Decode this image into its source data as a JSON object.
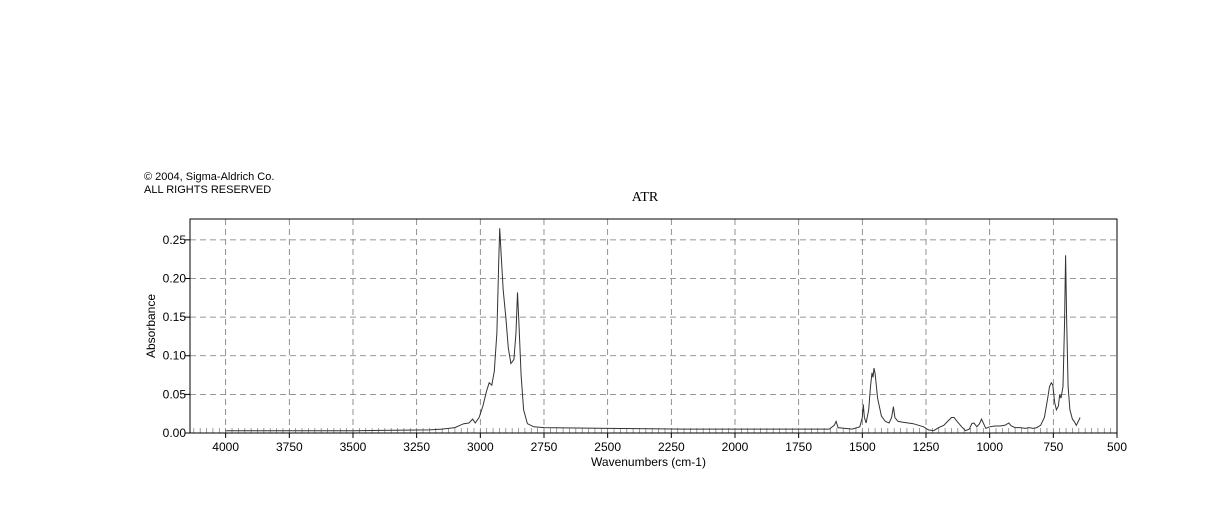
{
  "copyright": {
    "line1": "© 2004, Sigma-Aldrich Co.",
    "line2": "ALL RIGHTS RESERVED"
  },
  "colors": {
    "line": "#333333",
    "grid": "#777777",
    "axis": "#000000"
  },
  "chart_data": {
    "type": "line",
    "title": "ATR",
    "xlabel": "Wavenumbers (cm-1)",
    "ylabel": "Absorbance",
    "xlim": [
      4140,
      500
    ],
    "ylim": [
      0,
      0.277
    ],
    "x_reversed": true,
    "grid": true,
    "x_ticks": [
      4000,
      3750,
      3500,
      3250,
      3000,
      2750,
      2500,
      2250,
      2000,
      1750,
      1500,
      1250,
      1000,
      750,
      500
    ],
    "y_ticks": [
      0.0,
      0.05,
      0.1,
      0.15,
      0.2,
      0.25
    ],
    "x_tick_labels": [
      "4000",
      "3750",
      "3500",
      "3250",
      "3000",
      "2750",
      "2500",
      "2250",
      "2000",
      "1750",
      "1500",
      "1250",
      "1000",
      "750",
      "500"
    ],
    "y_tick_labels": [
      "0.00",
      "0.05",
      "0.10",
      "0.15",
      "0.20",
      "0.25"
    ],
    "series": [
      {
        "points": [
          [
            4000,
            0.003
          ],
          [
            3500,
            0.003
          ],
          [
            3200,
            0.004
          ],
          [
            3150,
            0.005
          ],
          [
            3100,
            0.007
          ],
          [
            3080,
            0.01
          ],
          [
            3065,
            0.012
          ],
          [
            3045,
            0.013
          ],
          [
            3030,
            0.018
          ],
          [
            3020,
            0.013
          ],
          [
            3005,
            0.02
          ],
          [
            2990,
            0.035
          ],
          [
            2975,
            0.055
          ],
          [
            2965,
            0.065
          ],
          [
            2955,
            0.062
          ],
          [
            2945,
            0.08
          ],
          [
            2935,
            0.13
          ],
          [
            2928,
            0.22
          ],
          [
            2924,
            0.265
          ],
          [
            2918,
            0.23
          ],
          [
            2910,
            0.185
          ],
          [
            2900,
            0.15
          ],
          [
            2890,
            0.11
          ],
          [
            2880,
            0.09
          ],
          [
            2868,
            0.095
          ],
          [
            2860,
            0.13
          ],
          [
            2854,
            0.182
          ],
          [
            2848,
            0.14
          ],
          [
            2840,
            0.075
          ],
          [
            2830,
            0.03
          ],
          [
            2815,
            0.012
          ],
          [
            2790,
            0.008
          ],
          [
            2750,
            0.007
          ],
          [
            2500,
            0.006
          ],
          [
            2200,
            0.005
          ],
          [
            1900,
            0.005
          ],
          [
            1700,
            0.005
          ],
          [
            1630,
            0.005
          ],
          [
            1610,
            0.01
          ],
          [
            1603,
            0.015
          ],
          [
            1595,
            0.007
          ],
          [
            1540,
            0.005
          ],
          [
            1510,
            0.008
          ],
          [
            1500,
            0.02
          ],
          [
            1496,
            0.037
          ],
          [
            1492,
            0.02
          ],
          [
            1485,
            0.013
          ],
          [
            1475,
            0.03
          ],
          [
            1468,
            0.06
          ],
          [
            1462,
            0.078
          ],
          [
            1458,
            0.072
          ],
          [
            1454,
            0.084
          ],
          [
            1450,
            0.077
          ],
          [
            1440,
            0.045
          ],
          [
            1425,
            0.022
          ],
          [
            1410,
            0.015
          ],
          [
            1395,
            0.013
          ],
          [
            1385,
            0.02
          ],
          [
            1378,
            0.034
          ],
          [
            1372,
            0.02
          ],
          [
            1360,
            0.015
          ],
          [
            1340,
            0.014
          ],
          [
            1300,
            0.012
          ],
          [
            1260,
            0.008
          ],
          [
            1240,
            0.004
          ],
          [
            1220,
            0.003
          ],
          [
            1200,
            0.007
          ],
          [
            1180,
            0.01
          ],
          [
            1165,
            0.015
          ],
          [
            1150,
            0.02
          ],
          [
            1140,
            0.02
          ],
          [
            1128,
            0.015
          ],
          [
            1110,
            0.008
          ],
          [
            1095,
            0.003
          ],
          [
            1080,
            0.005
          ],
          [
            1070,
            0.012
          ],
          [
            1062,
            0.013
          ],
          [
            1050,
            0.008
          ],
          [
            1040,
            0.012
          ],
          [
            1032,
            0.018
          ],
          [
            1025,
            0.013
          ],
          [
            1015,
            0.006
          ],
          [
            1000,
            0.008
          ],
          [
            980,
            0.009
          ],
          [
            960,
            0.009
          ],
          [
            940,
            0.01
          ],
          [
            925,
            0.013
          ],
          [
            915,
            0.009
          ],
          [
            900,
            0.007
          ],
          [
            880,
            0.007
          ],
          [
            860,
            0.006
          ],
          [
            845,
            0.007
          ],
          [
            830,
            0.006
          ],
          [
            815,
            0.007
          ],
          [
            800,
            0.01
          ],
          [
            785,
            0.02
          ],
          [
            772,
            0.045
          ],
          [
            765,
            0.06
          ],
          [
            758,
            0.065
          ],
          [
            752,
            0.062
          ],
          [
            745,
            0.04
          ],
          [
            738,
            0.03
          ],
          [
            730,
            0.035
          ],
          [
            725,
            0.05
          ],
          [
            720,
            0.045
          ],
          [
            712,
            0.06
          ],
          [
            706,
            0.14
          ],
          [
            702,
            0.23
          ],
          [
            698,
            0.15
          ],
          [
            692,
            0.06
          ],
          [
            685,
            0.03
          ],
          [
            675,
            0.018
          ],
          [
            668,
            0.015
          ],
          [
            660,
            0.01
          ],
          [
            652,
            0.015
          ],
          [
            645,
            0.02
          ]
        ]
      }
    ]
  }
}
